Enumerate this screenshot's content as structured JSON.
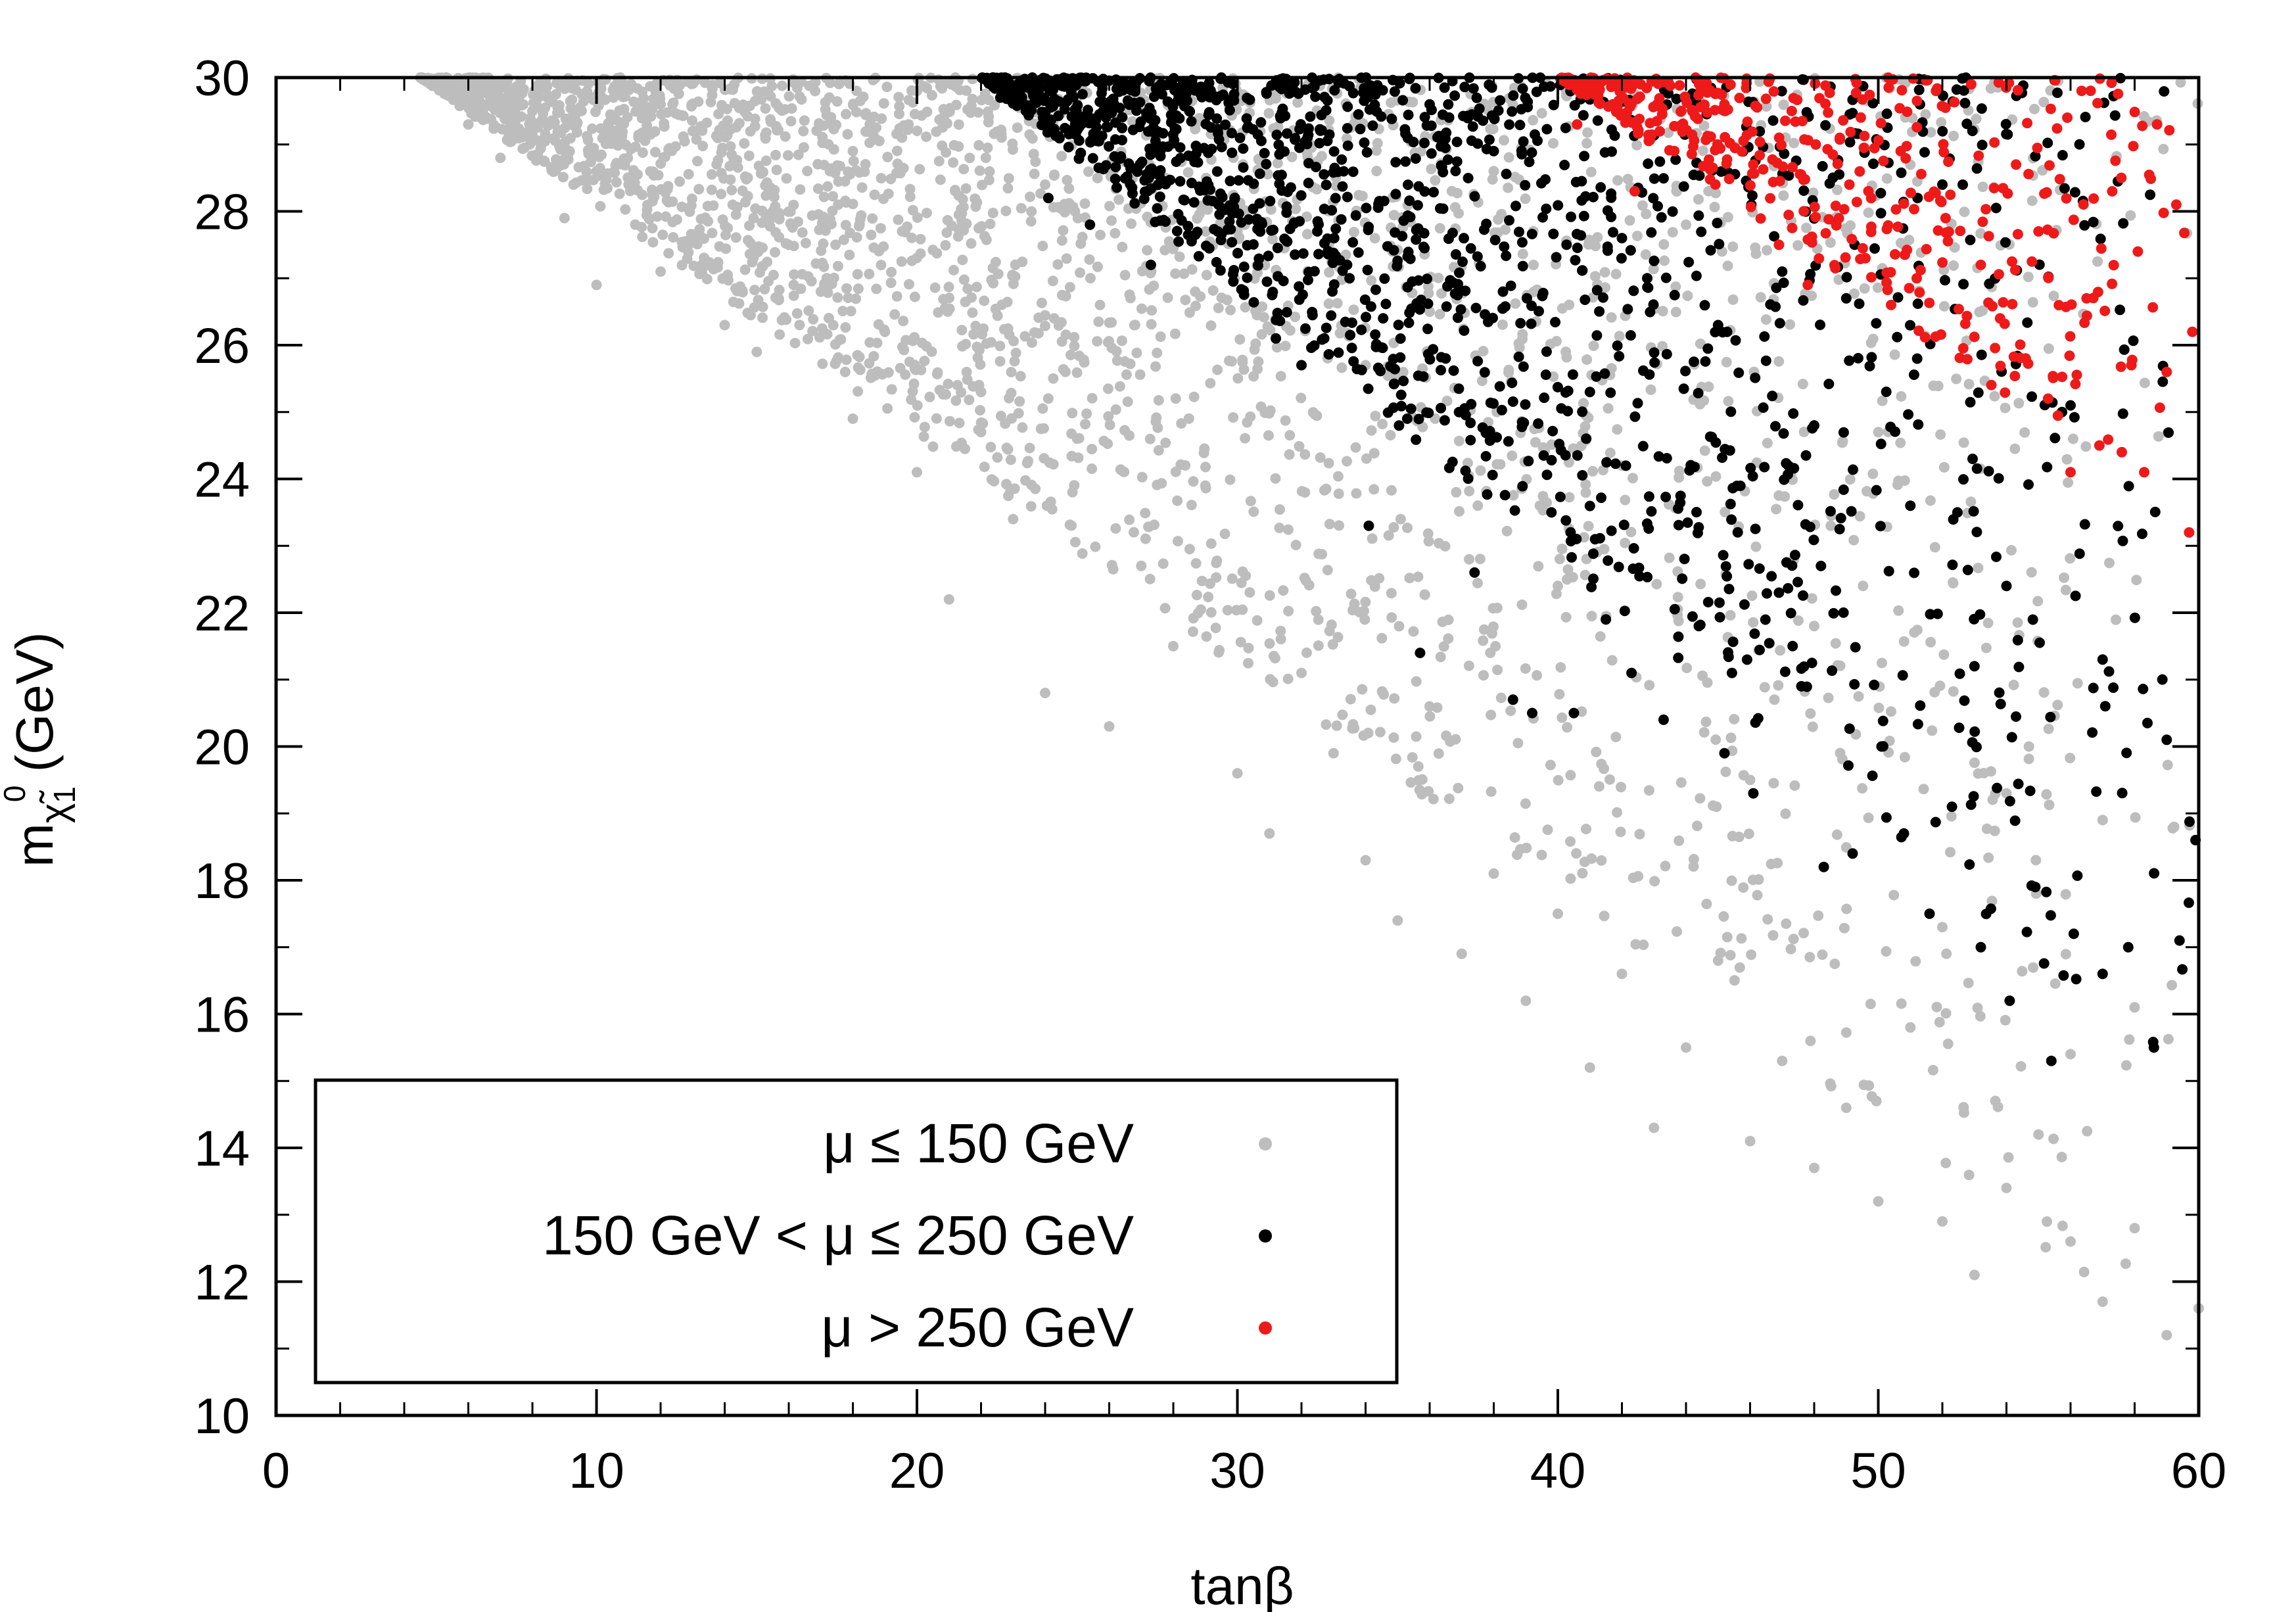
{
  "chart_data": {
    "type": "scatter",
    "title": "",
    "xlabel": "tanβ",
    "ylabel": {
      "main": "m",
      "subscript": "χ̃",
      "subscript_index": "1",
      "superscript": "0",
      "unit": "(GeV)"
    },
    "xlim": [
      0,
      60
    ],
    "ylim": [
      10,
      30
    ],
    "x_ticks": [
      "0",
      "10",
      "20",
      "30",
      "40",
      "50",
      "60"
    ],
    "y_ticks": [
      "10",
      "12",
      "14",
      "16",
      "18",
      "20",
      "22",
      "24",
      "26",
      "28",
      "30"
    ],
    "grid": false,
    "legend_placement": "bottom-left",
    "series": [
      {
        "name": "μ ≤ 150 GeV",
        "color": "#bdbdbd",
        "region": "tanβ ≳ 5 up to 60, lower mass edge falling from ~30 GeV at tanβ≈5 to ~11 GeV at tanβ≈60",
        "points": [
          [
            5,
            29.9
          ],
          [
            6,
            29.3
          ],
          [
            7,
            28.8
          ],
          [
            8,
            29.5
          ],
          [
            9,
            27.9
          ],
          [
            10,
            26.9
          ],
          [
            11,
            28.4
          ],
          [
            12,
            27.1
          ],
          [
            13,
            29.2
          ],
          [
            14,
            26.3
          ],
          [
            15,
            25.9
          ],
          [
            16,
            27.5
          ],
          [
            17,
            26.8
          ],
          [
            18,
            24.9
          ],
          [
            19,
            26.2
          ],
          [
            20,
            24.1
          ],
          [
            21,
            22.2
          ],
          [
            22,
            25.3
          ],
          [
            23,
            23.4
          ],
          [
            24,
            20.8
          ],
          [
            25,
            24.6
          ],
          [
            26,
            20.3
          ],
          [
            27,
            22.7
          ],
          [
            28,
            21.5
          ],
          [
            29,
            23.9
          ],
          [
            30,
            19.6
          ],
          [
            31,
            18.7
          ],
          [
            32,
            21.1
          ],
          [
            33,
            19.9
          ],
          [
            34,
            18.3
          ],
          [
            35,
            17.4
          ],
          [
            36,
            20.6
          ],
          [
            37,
            16.9
          ],
          [
            38,
            18.1
          ],
          [
            39,
            16.2
          ],
          [
            40,
            17.5
          ],
          [
            41,
            15.2
          ],
          [
            42,
            16.6
          ],
          [
            43,
            14.3
          ],
          [
            44,
            15.5
          ],
          [
            45,
            16.8
          ],
          [
            46,
            14.1
          ],
          [
            47,
            15.3
          ],
          [
            48,
            13.7
          ],
          [
            49,
            14.6
          ],
          [
            50,
            13.2
          ],
          [
            51,
            15.8
          ],
          [
            52,
            12.9
          ],
          [
            53,
            12.1
          ],
          [
            54,
            13.4
          ],
          [
            55,
            14.2
          ],
          [
            56,
            12.6
          ],
          [
            57,
            11.7
          ],
          [
            58,
            12.8
          ],
          [
            59,
            11.2
          ],
          [
            60,
            11.6
          ],
          [
            12,
            29.6
          ],
          [
            18,
            28.9
          ],
          [
            24,
            28.4
          ],
          [
            30,
            27.7
          ],
          [
            36,
            26.5
          ],
          [
            42,
            24.2
          ],
          [
            48,
            21.8
          ],
          [
            54,
            19.3
          ],
          [
            58,
            16.1
          ],
          [
            20,
            29.8
          ],
          [
            28,
            29.1
          ],
          [
            34,
            25.7
          ],
          [
            40,
            22.4
          ],
          [
            46,
            19.5
          ],
          [
            52,
            17.3
          ],
          [
            56,
            15.4
          ],
          [
            44,
            27.8
          ],
          [
            50,
            24.7
          ],
          [
            38,
            28.6
          ],
          [
            57,
            18.9
          ]
        ]
      },
      {
        "name": "150 GeV < μ ≤ 250 GeV",
        "color": "#000000",
        "region": "tanβ ≳ 22 up to 60, lower mass edge falling from ~30 GeV at tanβ≈22 to ~15 GeV at tanβ≈60",
        "points": [
          [
            22.6,
            29.7
          ],
          [
            23.6,
            30.0
          ],
          [
            24.1,
            28.2
          ],
          [
            25.4,
            27.8
          ],
          [
            27.3,
            27.2
          ],
          [
            28.5,
            29.5
          ],
          [
            29.5,
            30.0
          ],
          [
            31.2,
            26.1
          ],
          [
            32.0,
            25.7
          ],
          [
            33.5,
            27.0
          ],
          [
            34.1,
            23.3
          ],
          [
            35.3,
            24.9
          ],
          [
            35.7,
            21.4
          ],
          [
            36.5,
            25.8
          ],
          [
            37.4,
            22.6
          ],
          [
            38.6,
            20.7
          ],
          [
            39.2,
            20.5
          ],
          [
            39.8,
            23.5
          ],
          [
            40.5,
            20.5
          ],
          [
            41.5,
            21.9
          ],
          [
            42.3,
            21.1
          ],
          [
            43.3,
            20.4
          ],
          [
            44.4,
            21.8
          ],
          [
            45.2,
            19.9
          ],
          [
            46.1,
            19.3
          ],
          [
            46.9,
            22.3
          ],
          [
            47.6,
            20.9
          ],
          [
            48.3,
            18.2
          ],
          [
            49.2,
            18.4
          ],
          [
            50.1,
            20.0
          ],
          [
            50.8,
            18.7
          ],
          [
            51.6,
            17.5
          ],
          [
            52.3,
            19.1
          ],
          [
            53.2,
            17.0
          ],
          [
            54.1,
            16.2
          ],
          [
            54.9,
            17.9
          ],
          [
            55.4,
            15.3
          ],
          [
            56.1,
            17.2
          ],
          [
            57.0,
            16.6
          ],
          [
            57.8,
            17.0
          ],
          [
            58.6,
            15.5
          ],
          [
            59.4,
            17.1
          ],
          [
            59.9,
            18.6
          ],
          [
            38,
            28.9
          ],
          [
            42,
            27.6
          ],
          [
            45,
            26.3
          ],
          [
            48,
            24.8
          ],
          [
            51,
            23.6
          ],
          [
            54,
            22.4
          ],
          [
            57,
            21.3
          ],
          [
            59,
            20.1
          ],
          [
            36,
            29.6
          ],
          [
            44,
            29.2
          ],
          [
            52,
            28.4
          ],
          [
            56,
            25.1
          ],
          [
            47,
            27.1
          ],
          [
            41,
            25.3
          ],
          [
            49,
            26.7
          ],
          [
            53,
            21.2
          ]
        ]
      },
      {
        "name": "μ > 250 GeV",
        "color": "#ee1a1a",
        "region": "tanβ ≳ 40 up to 60, lower mass edge falling from ~30 GeV at tanβ≈40 to ~23 GeV at tanβ≈60",
        "points": [
          [
            40.6,
            29.3
          ],
          [
            42.4,
            28.3
          ],
          [
            43.1,
            29.6
          ],
          [
            44.3,
            30.0
          ],
          [
            45.2,
            29.6
          ],
          [
            46.1,
            28.7
          ],
          [
            46.9,
            27.5
          ],
          [
            47.8,
            26.9
          ],
          [
            48.8,
            29.1
          ],
          [
            49.6,
            27.3
          ],
          [
            50.4,
            26.6
          ],
          [
            51.2,
            27.0
          ],
          [
            52.1,
            27.9
          ],
          [
            52.9,
            29.9
          ],
          [
            53.8,
            26.4
          ],
          [
            54.6,
            25.8
          ],
          [
            55.3,
            25.2
          ],
          [
            56.0,
            24.1
          ],
          [
            56.9,
            24.5
          ],
          [
            57.6,
            24.4
          ],
          [
            58.3,
            24.1
          ],
          [
            59.0,
            25.6
          ],
          [
            59.7,
            23.2
          ],
          [
            59.8,
            26.2
          ],
          [
            58.7,
            29.3
          ],
          [
            57.3,
            28.3
          ],
          [
            55.9,
            29.4
          ],
          [
            54.3,
            28.7
          ],
          [
            51.8,
            29.8
          ],
          [
            49.1,
            28.4
          ],
          [
            47.3,
            29.5
          ],
          [
            53.2,
            27.2
          ],
          [
            56.5,
            26.7
          ],
          [
            58.1,
            27.4
          ],
          [
            59.3,
            28.1
          ],
          [
            50.7,
            28.9
          ],
          [
            55.0,
            27.7
          ],
          [
            57.9,
            25.7
          ]
        ]
      }
    ]
  }
}
